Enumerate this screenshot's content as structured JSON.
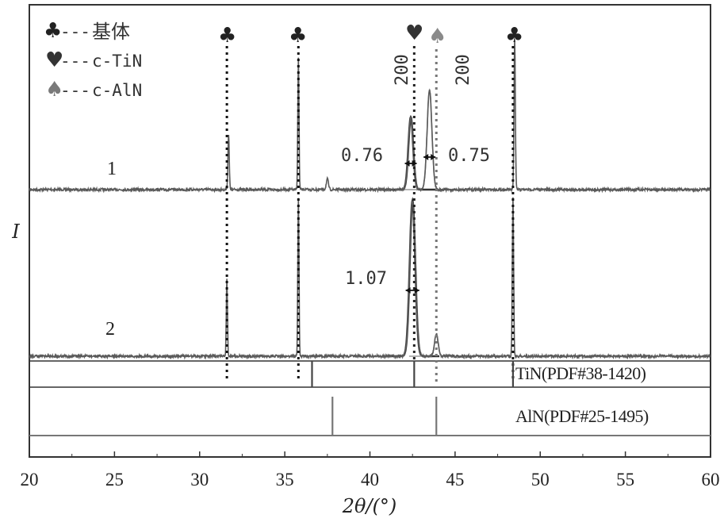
{
  "chart_data": {
    "type": "line",
    "xlabel": "2θ/(°)",
    "ylabel": "I",
    "xlim": [
      20,
      60
    ],
    "x_ticks": [
      "20",
      "25",
      "30",
      "35",
      "40",
      "45",
      "50",
      "55",
      "60"
    ],
    "grid": false,
    "legend_placement": "top-left",
    "legend": [
      {
        "symbol": "♣",
        "text": "基体",
        "color": "#222222",
        "symbol_name": "club-icon"
      },
      {
        "symbol": "♥",
        "text": "c-TiN",
        "color": "#333333",
        "symbol_name": "heart-icon"
      },
      {
        "symbol": "♠",
        "text": "c-AlN",
        "color": "#7a7a7a",
        "symbol_name": "spade-icon"
      }
    ],
    "series": [
      {
        "name": "1",
        "color": "#555555",
        "baseline_relative": 0.0,
        "peaks": [
          {
            "x": 31.7,
            "height": 0.37,
            "width": 0.09
          },
          {
            "x": 35.8,
            "height": 0.87,
            "width": 0.08
          },
          {
            "x": 37.5,
            "height": 0.07,
            "width": 0.15
          },
          {
            "x": 42.4,
            "height": 0.48,
            "width": 0.33
          },
          {
            "x": 43.5,
            "height": 0.66,
            "width": 0.33
          },
          {
            "x": 48.5,
            "height": 1.0,
            "width": 0.09
          }
        ]
      },
      {
        "name": "2",
        "color": "#555555",
        "peaks": [
          {
            "x": 31.6,
            "height": 0.49,
            "width": 0.08
          },
          {
            "x": 35.8,
            "height": 1.0,
            "width": 0.08
          },
          {
            "x": 42.5,
            "height": 0.98,
            "width": 0.38
          },
          {
            "x": 43.9,
            "height": 0.14,
            "width": 0.25
          },
          {
            "x": 48.4,
            "height": 1.0,
            "width": 0.09
          }
        ]
      }
    ],
    "substrate_lines_x": [
      31.6,
      35.8,
      48.4
    ],
    "tin_line_x": 42.6,
    "aln_line_x": 43.9,
    "peak_labels": [
      "200",
      "200"
    ],
    "fwhm_labels": [
      {
        "text": "0.76",
        "x": 42.4,
        "pattern": "1"
      },
      {
        "text": "0.75",
        "x": 43.5,
        "pattern": "1"
      },
      {
        "text": "1.07",
        "x": 42.5,
        "pattern": "2"
      }
    ],
    "references": [
      {
        "label": "TiN(PDF#38-1420)",
        "lines_x": [
          36.6,
          42.6,
          48.4
        ]
      },
      {
        "label": "AlN(PDF#25-1495)",
        "lines_x": [
          37.8,
          43.9
        ]
      }
    ]
  }
}
